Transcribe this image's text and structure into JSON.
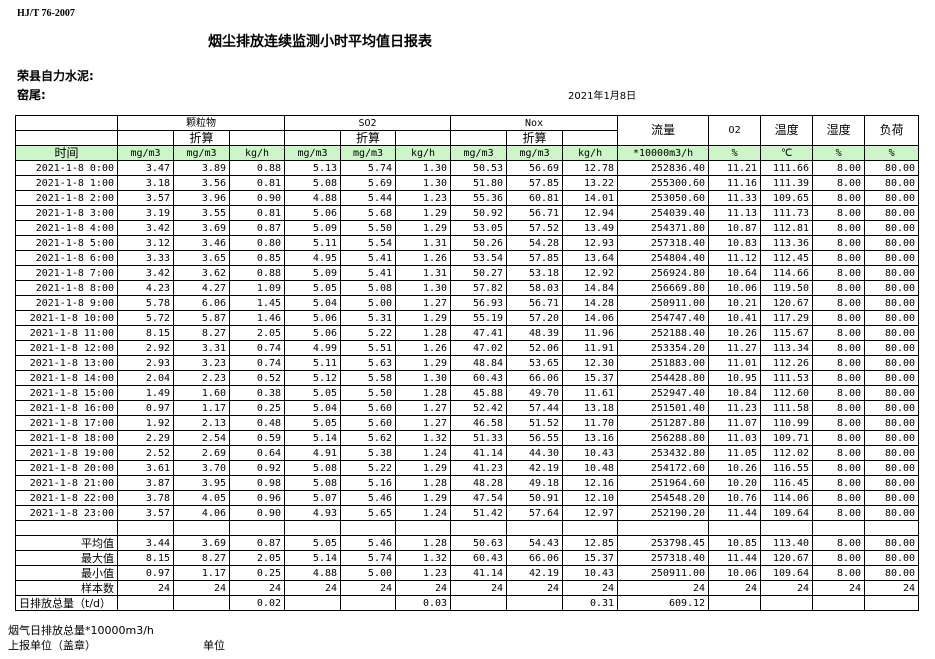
{
  "header": {
    "standard": "HJ/T  76-2007",
    "title": "烟尘排放连续监测小时平均值日报表",
    "company": "荣县自力水泥:",
    "kiln": "窑尾:",
    "date": "2021年1月8日"
  },
  "table": {
    "groups": [
      "颗粒物",
      "SO2",
      "Nox"
    ],
    "converted": "折算",
    "single_headers": [
      "流量",
      "O2",
      "温度",
      "湿度",
      "负荷"
    ],
    "units": [
      "时间",
      "mg/m3",
      "mg/m3",
      "kg/h",
      "mg/m3",
      "mg/m3",
      "kg/h",
      "mg/m3",
      "mg/m3",
      "kg/h",
      "*10000m3/h",
      "%",
      "℃",
      "%",
      "%"
    ],
    "rows": [
      [
        "2021-1-8 0:00",
        "3.47",
        "3.89",
        "0.88",
        "5.13",
        "5.74",
        "1.30",
        "50.53",
        "56.69",
        "12.78",
        "252836.40",
        "11.21",
        "111.66",
        "8.00",
        "80.00"
      ],
      [
        "2021-1-8 1:00",
        "3.18",
        "3.56",
        "0.81",
        "5.08",
        "5.69",
        "1.30",
        "51.80",
        "57.85",
        "13.22",
        "255300.60",
        "11.16",
        "111.39",
        "8.00",
        "80.00"
      ],
      [
        "2021-1-8 2:00",
        "3.57",
        "3.96",
        "0.90",
        "4.88",
        "5.44",
        "1.23",
        "55.36",
        "60.81",
        "14.01",
        "253050.60",
        "11.33",
        "109.65",
        "8.00",
        "80.00"
      ],
      [
        "2021-1-8 3:00",
        "3.19",
        "3.55",
        "0.81",
        "5.06",
        "5.68",
        "1.29",
        "50.92",
        "56.71",
        "12.94",
        "254039.40",
        "11.13",
        "111.73",
        "8.00",
        "80.00"
      ],
      [
        "2021-1-8 4:00",
        "3.42",
        "3.69",
        "0.87",
        "5.09",
        "5.50",
        "1.29",
        "53.05",
        "57.52",
        "13.49",
        "254371.80",
        "10.87",
        "112.81",
        "8.00",
        "80.00"
      ],
      [
        "2021-1-8 5:00",
        "3.12",
        "3.46",
        "0.80",
        "5.11",
        "5.54",
        "1.31",
        "50.26",
        "54.28",
        "12.93",
        "257318.40",
        "10.83",
        "113.36",
        "8.00",
        "80.00"
      ],
      [
        "2021-1-8 6:00",
        "3.33",
        "3.65",
        "0.85",
        "4.95",
        "5.41",
        "1.26",
        "53.54",
        "57.85",
        "13.64",
        "254804.40",
        "11.12",
        "112.45",
        "8.00",
        "80.00"
      ],
      [
        "2021-1-8 7:00",
        "3.42",
        "3.62",
        "0.88",
        "5.09",
        "5.41",
        "1.31",
        "50.27",
        "53.18",
        "12.92",
        "256924.80",
        "10.64",
        "114.66",
        "8.00",
        "80.00"
      ],
      [
        "2021-1-8 8:00",
        "4.23",
        "4.27",
        "1.09",
        "5.05",
        "5.08",
        "1.30",
        "57.82",
        "58.03",
        "14.84",
        "256669.80",
        "10.06",
        "119.50",
        "8.00",
        "80.00"
      ],
      [
        "2021-1-8 9:00",
        "5.78",
        "6.06",
        "1.45",
        "5.04",
        "5.00",
        "1.27",
        "56.93",
        "56.71",
        "14.28",
        "250911.00",
        "10.21",
        "120.67",
        "8.00",
        "80.00"
      ],
      [
        "2021-1-8 10:00",
        "5.72",
        "5.87",
        "1.46",
        "5.06",
        "5.31",
        "1.29",
        "55.19",
        "57.20",
        "14.06",
        "254747.40",
        "10.41",
        "117.29",
        "8.00",
        "80.00"
      ],
      [
        "2021-1-8 11:00",
        "8.15",
        "8.27",
        "2.05",
        "5.06",
        "5.22",
        "1.28",
        "47.41",
        "48.39",
        "11.96",
        "252188.40",
        "10.26",
        "115.67",
        "8.00",
        "80.00"
      ],
      [
        "2021-1-8 12:00",
        "2.92",
        "3.31",
        "0.74",
        "4.99",
        "5.51",
        "1.26",
        "47.02",
        "52.06",
        "11.91",
        "253354.20",
        "11.27",
        "113.34",
        "8.00",
        "80.00"
      ],
      [
        "2021-1-8 13:00",
        "2.93",
        "3.23",
        "0.74",
        "5.11",
        "5.63",
        "1.29",
        "48.84",
        "53.65",
        "12.30",
        "251883.00",
        "11.01",
        "112.26",
        "8.00",
        "80.00"
      ],
      [
        "2021-1-8 14:00",
        "2.04",
        "2.23",
        "0.52",
        "5.12",
        "5.58",
        "1.30",
        "60.43",
        "66.06",
        "15.37",
        "254428.80",
        "10.95",
        "111.53",
        "8.00",
        "80.00"
      ],
      [
        "2021-1-8 15:00",
        "1.49",
        "1.60",
        "0.38",
        "5.05",
        "5.50",
        "1.28",
        "45.88",
        "49.70",
        "11.61",
        "252947.40",
        "10.84",
        "112.60",
        "8.00",
        "80.00"
      ],
      [
        "2021-1-8 16:00",
        "0.97",
        "1.17",
        "0.25",
        "5.04",
        "5.60",
        "1.27",
        "52.42",
        "57.44",
        "13.18",
        "251501.40",
        "11.23",
        "111.58",
        "8.00",
        "80.00"
      ],
      [
        "2021-1-8 17:00",
        "1.92",
        "2.13",
        "0.48",
        "5.05",
        "5.60",
        "1.27",
        "46.58",
        "51.52",
        "11.70",
        "251287.80",
        "11.07",
        "110.99",
        "8.00",
        "80.00"
      ],
      [
        "2021-1-8 18:00",
        "2.29",
        "2.54",
        "0.59",
        "5.14",
        "5.62",
        "1.32",
        "51.33",
        "56.55",
        "13.16",
        "256288.80",
        "11.03",
        "109.71",
        "8.00",
        "80.00"
      ],
      [
        "2021-1-8 19:00",
        "2.52",
        "2.69",
        "0.64",
        "4.91",
        "5.38",
        "1.24",
        "41.14",
        "44.30",
        "10.43",
        "253432.80",
        "11.05",
        "112.02",
        "8.00",
        "80.00"
      ],
      [
        "2021-1-8 20:00",
        "3.61",
        "3.70",
        "0.92",
        "5.08",
        "5.22",
        "1.29",
        "41.23",
        "42.19",
        "10.48",
        "254172.60",
        "10.26",
        "116.55",
        "8.00",
        "80.00"
      ],
      [
        "2021-1-8 21:00",
        "3.87",
        "3.95",
        "0.98",
        "5.08",
        "5.16",
        "1.28",
        "48.28",
        "49.18",
        "12.16",
        "251964.60",
        "10.20",
        "116.45",
        "8.00",
        "80.00"
      ],
      [
        "2021-1-8 22:00",
        "3.78",
        "4.05",
        "0.96",
        "5.07",
        "5.46",
        "1.29",
        "47.54",
        "50.91",
        "12.10",
        "254548.20",
        "10.76",
        "114.06",
        "8.00",
        "80.00"
      ],
      [
        "2021-1-8 23:00",
        "3.57",
        "4.06",
        "0.90",
        "4.93",
        "5.65",
        "1.24",
        "51.42",
        "57.64",
        "12.97",
        "252190.20",
        "11.44",
        "109.64",
        "8.00",
        "80.00"
      ]
    ],
    "stats": [
      [
        "平均值",
        "3.44",
        "3.69",
        "0.87",
        "5.05",
        "5.46",
        "1.28",
        "50.63",
        "54.43",
        "12.85",
        "253798.45",
        "10.85",
        "113.40",
        "8.00",
        "80.00"
      ],
      [
        "最大值",
        "8.15",
        "8.27",
        "2.05",
        "5.14",
        "5.74",
        "1.32",
        "60.43",
        "66.06",
        "15.37",
        "257318.40",
        "11.44",
        "120.67",
        "8.00",
        "80.00"
      ],
      [
        "最小值",
        "0.97",
        "1.17",
        "0.25",
        "4.88",
        "5.00",
        "1.23",
        "41.14",
        "42.19",
        "10.43",
        "250911.00",
        "10.06",
        "109.64",
        "8.00",
        "80.00"
      ],
      [
        "样本数",
        "24",
        "24",
        "24",
        "24",
        "24",
        "24",
        "24",
        "24",
        "24",
        "24",
        "24",
        "24",
        "24",
        "24"
      ],
      [
        "日排放总量（t/d）",
        "",
        "",
        "0.02",
        "",
        "",
        "0.03",
        "",
        "",
        "0.31",
        "609.12",
        "",
        "",
        "",
        ""
      ]
    ]
  },
  "footer": {
    "flue_total": "烟气日排放总量*10000m3/h",
    "report_unit": "上报单位（盖章）",
    "unit": "单位"
  }
}
